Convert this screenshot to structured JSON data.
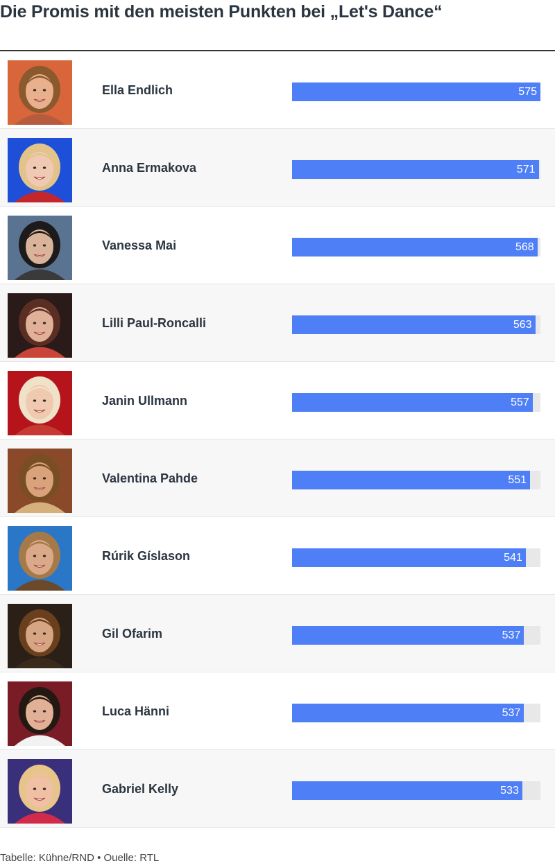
{
  "title": "Die Promis mit den meisten Punkten bei „Let's Dance“",
  "footer": "Tabelle: Kühne/RND • Quelle: RTL",
  "colors": {
    "bar": "#4f7ff7",
    "track": "#e8e8e8",
    "alt_row": "#f7f7f7"
  },
  "chart_data": {
    "type": "bar",
    "orientation": "horizontal",
    "title": "Die Promis mit den meisten Punkten bei „Let's Dance“",
    "categories": [
      "Ella Endlich",
      "Anna Ermakova",
      "Vanessa Mai",
      "Lilli Paul-Roncalli",
      "Janin Ullmann",
      "Valentina Pahde",
      "Rúrik Gíslason",
      "Gil Ofarim",
      "Luca Hänni",
      "Gabriel Kelly"
    ],
    "values": [
      575,
      571,
      568,
      563,
      557,
      551,
      541,
      537,
      537,
      533
    ],
    "labels": [
      "575",
      "571",
      "568",
      "563",
      "557",
      "551",
      "541",
      "537",
      "537",
      "533"
    ],
    "xlim": [
      0,
      575
    ],
    "grid": false,
    "legend": "none"
  },
  "rows": [
    {
      "name": "Ella Endlich",
      "value": 575,
      "label": "575",
      "photo_icon": "portrait-icon"
    },
    {
      "name": "Anna Ermakova",
      "value": 571,
      "label": "571",
      "photo_icon": "portrait-icon"
    },
    {
      "name": "Vanessa Mai",
      "value": 568,
      "label": "568",
      "photo_icon": "portrait-icon"
    },
    {
      "name": "Lilli Paul-Roncalli",
      "value": 563,
      "label": "563",
      "photo_icon": "portrait-icon"
    },
    {
      "name": "Janin Ullmann",
      "value": 557,
      "label": "557",
      "photo_icon": "portrait-icon"
    },
    {
      "name": "Valentina Pahde",
      "value": 551,
      "label": "551",
      "photo_icon": "portrait-icon"
    },
    {
      "name": "Rúrik Gíslason",
      "value": 541,
      "label": "541",
      "photo_icon": "portrait-icon"
    },
    {
      "name": "Gil Ofarim",
      "value": 537,
      "label": "537",
      "photo_icon": "portrait-icon"
    },
    {
      "name": "Luca Hänni",
      "value": 537,
      "label": "537",
      "photo_icon": "portrait-icon"
    },
    {
      "name": "Gabriel Kelly",
      "value": 533,
      "label": "533",
      "photo_icon": "portrait-icon"
    }
  ]
}
